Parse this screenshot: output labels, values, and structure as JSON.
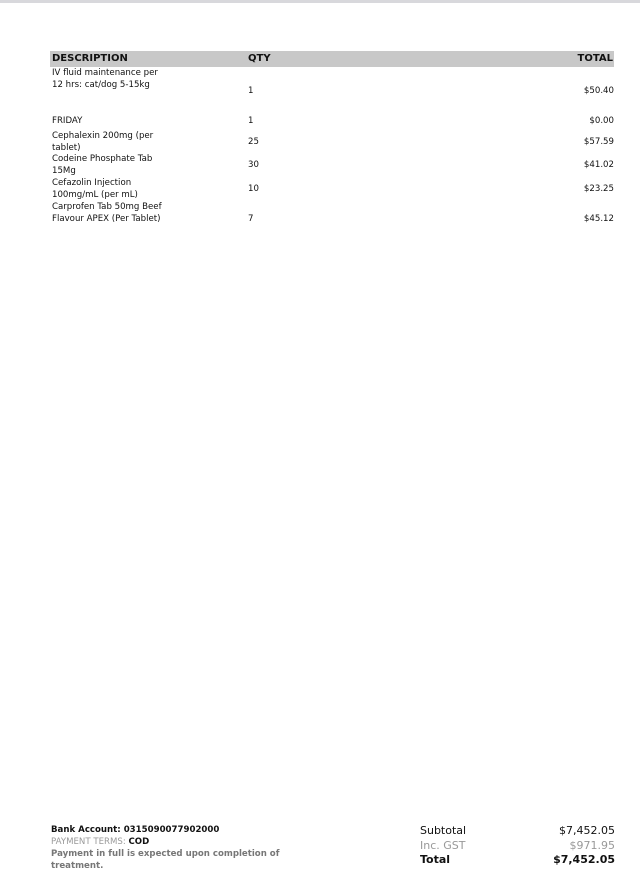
{
  "table": {
    "headers": {
      "description": "DESCRIPTION",
      "qty": "QTY",
      "total": "TOTAL"
    },
    "rows": [
      {
        "description": "IV fluid maintenance per 12 hrs: cat/dog 5-15kg",
        "qty": "1",
        "total": "$50.40"
      },
      {
        "description": "FRIDAY",
        "qty": "1",
        "total": "$0.00"
      },
      {
        "description": "Cephalexin 200mg (per tablet)",
        "qty": "25",
        "total": "$57.59"
      },
      {
        "description": "Codeine Phosphate Tab 15Mg",
        "qty": "30",
        "total": "$41.02"
      },
      {
        "description": "Cefazolin Injection 100mg/mL (per mL)",
        "qty": "10",
        "total": "$23.25"
      },
      {
        "description": "Carprofen Tab 50mg Beef Flavour APEX (Per Tablet)",
        "qty": "7",
        "total": "$45.12"
      }
    ]
  },
  "footer": {
    "bank_account": "Bank Account: 0315090077902000",
    "payment_terms_label": "PAYMENT TERMS:",
    "payment_terms_value": "COD",
    "payment_note": "Payment in full is expected upon completion of treatment."
  },
  "summary": {
    "subtotal_label": "Subtotal",
    "subtotal": "$7,452.05",
    "gst_label": "Inc. GST",
    "gst": "$971.95",
    "total_label": "Total",
    "total": "$7,452.05"
  }
}
